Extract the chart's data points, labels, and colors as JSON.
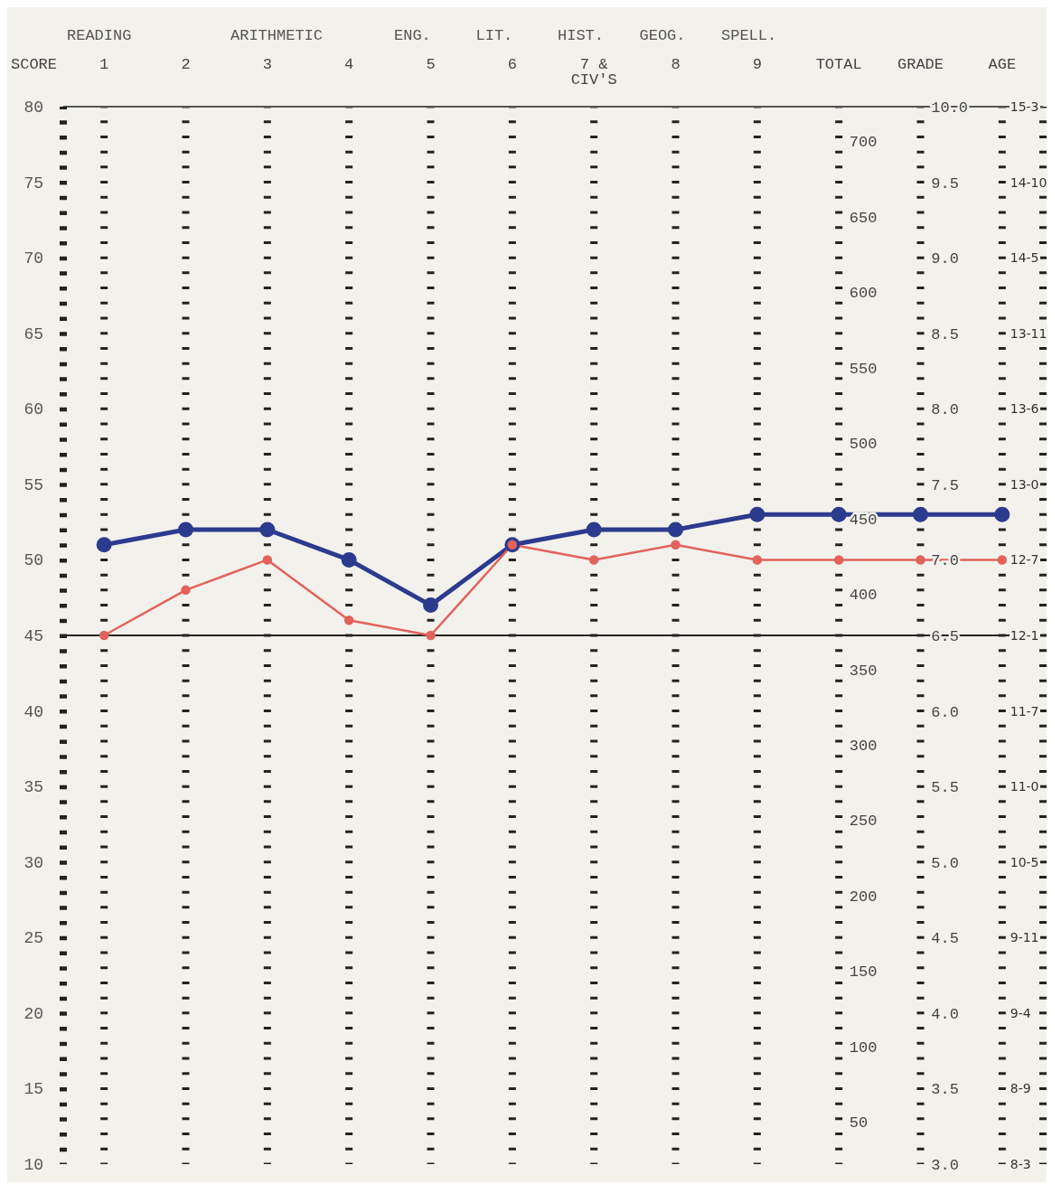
{
  "chart_data": {
    "type": "line",
    "ylabel": "SCORE",
    "categories": [
      "1",
      "2",
      "3",
      "4",
      "5",
      "6",
      "7 &\nCIV'S",
      "8",
      "9",
      "TOTAL",
      "GRADE",
      "AGE"
    ],
    "series": [
      {
        "color": "#2c3b8e",
        "values": [
          51,
          52,
          52,
          50,
          47,
          51,
          52,
          52,
          53,
          53,
          53,
          53
        ]
      },
      {
        "color": "#e2625c",
        "values": [
          45,
          48,
          50,
          46,
          45,
          51,
          50,
          51,
          50,
          50,
          50,
          50
        ]
      }
    ],
    "ylim": [
      10,
      80
    ],
    "yticks": [
      10,
      15,
      20,
      25,
      30,
      35,
      40,
      45,
      50,
      55,
      60,
      65,
      70,
      75,
      80
    ],
    "y2lim": [
      22,
      723
    ],
    "y2ticks": [
      50,
      100,
      150,
      200,
      250,
      300,
      350,
      400,
      450,
      500,
      550,
      600,
      650,
      700
    ],
    "y3lim": [
      3,
      10
    ],
    "y3ticks": [
      {
        "value": 3,
        "label": "3.0"
      },
      {
        "value": 3.5,
        "label": "3.5"
      },
      {
        "value": 4,
        "label": "4.0"
      },
      {
        "value": 4.5,
        "label": "4.5"
      },
      {
        "value": 5,
        "label": "5.0"
      },
      {
        "value": 5.5,
        "label": "5.5"
      },
      {
        "value": 6,
        "label": "6.0"
      },
      {
        "value": 6.5,
        "label": "6.5"
      },
      {
        "value": 7,
        "label": "7.0"
      },
      {
        "value": 7.5,
        "label": "7.5"
      },
      {
        "value": 8,
        "label": "8.0"
      },
      {
        "value": 8.5,
        "label": "8.5"
      },
      {
        "value": 9,
        "label": "9.0"
      },
      {
        "value": 9.5,
        "label": "9.5"
      },
      {
        "value": 10,
        "label": "10.0"
      }
    ],
    "ref_lines": [
      {
        "axis": "y",
        "value": 45,
        "color": "#222222"
      }
    ],
    "annotations": [
      "READING",
      "ARITHMETIC",
      "ENG.",
      "LIT.",
      "HIST.",
      "GEOG.",
      "SPELL.",
      "15-3",
      "14-10",
      "14-5",
      "13-11",
      "13-6",
      "13-0",
      "12-7",
      "12-1",
      "11-7",
      "11-0",
      "10-5",
      "9-11",
      "9-4",
      "8-9",
      "8-3"
    ],
    "grid": "x",
    "marker": "circle",
    "line_style": "solid"
  }
}
